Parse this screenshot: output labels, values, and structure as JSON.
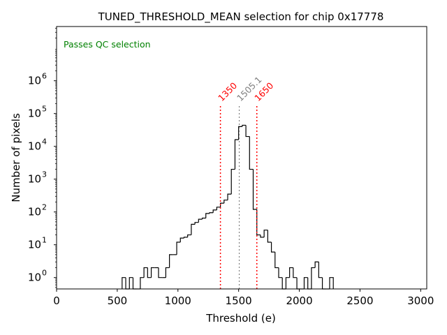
{
  "chart_data": {
    "type": "histogram",
    "title": "TUNED_THRESHOLD_MEAN selection for chip 0x17778",
    "xlabel": "Threshold (e)",
    "ylabel": "Number of pixels",
    "xlim": [
      0,
      3050
    ],
    "ylim": [
      0.45,
      45000000
    ],
    "yscale": "log",
    "xticks": [
      0,
      500,
      1000,
      1500,
      2000,
      2500,
      3000
    ],
    "xtick_labels": [
      "0",
      "500",
      "1000",
      "1500",
      "2000",
      "2500",
      "3000"
    ],
    "yticks": [
      1,
      10,
      100,
      1000,
      10000,
      100000,
      1000000
    ],
    "ytick_labels": [
      {
        "base": "10",
        "exp": "0"
      },
      {
        "base": "10",
        "exp": "1"
      },
      {
        "base": "10",
        "exp": "2"
      },
      {
        "base": "10",
        "exp": "3"
      },
      {
        "base": "10",
        "exp": "4"
      },
      {
        "base": "10",
        "exp": "5"
      },
      {
        "base": "10",
        "exp": "6"
      }
    ],
    "status_text": "Passes QC selection",
    "status_color": "#008000",
    "bin_width": 30,
    "bins": [
      {
        "x": 540,
        "count": 1
      },
      {
        "x": 570,
        "count": 0
      },
      {
        "x": 600,
        "count": 1
      },
      {
        "x": 630,
        "count": 0
      },
      {
        "x": 660,
        "count": 0
      },
      {
        "x": 690,
        "count": 1
      },
      {
        "x": 720,
        "count": 2
      },
      {
        "x": 750,
        "count": 1
      },
      {
        "x": 780,
        "count": 2
      },
      {
        "x": 810,
        "count": 2
      },
      {
        "x": 840,
        "count": 1
      },
      {
        "x": 870,
        "count": 1
      },
      {
        "x": 900,
        "count": 2
      },
      {
        "x": 930,
        "count": 5
      },
      {
        "x": 960,
        "count": 5
      },
      {
        "x": 990,
        "count": 12
      },
      {
        "x": 1020,
        "count": 16
      },
      {
        "x": 1050,
        "count": 17
      },
      {
        "x": 1080,
        "count": 20
      },
      {
        "x": 1110,
        "count": 42
      },
      {
        "x": 1140,
        "count": 48
      },
      {
        "x": 1170,
        "count": 60
      },
      {
        "x": 1200,
        "count": 65
      },
      {
        "x": 1230,
        "count": 90
      },
      {
        "x": 1260,
        "count": 95
      },
      {
        "x": 1290,
        "count": 115
      },
      {
        "x": 1320,
        "count": 140
      },
      {
        "x": 1350,
        "count": 185
      },
      {
        "x": 1380,
        "count": 230
      },
      {
        "x": 1410,
        "count": 350
      },
      {
        "x": 1440,
        "count": 2000
      },
      {
        "x": 1470,
        "count": 16000
      },
      {
        "x": 1500,
        "count": 40000
      },
      {
        "x": 1530,
        "count": 44000
      },
      {
        "x": 1560,
        "count": 20000
      },
      {
        "x": 1590,
        "count": 2000
      },
      {
        "x": 1620,
        "count": 120
      },
      {
        "x": 1650,
        "count": 20
      },
      {
        "x": 1680,
        "count": 17
      },
      {
        "x": 1710,
        "count": 28
      },
      {
        "x": 1740,
        "count": 12
      },
      {
        "x": 1770,
        "count": 6
      },
      {
        "x": 1800,
        "count": 2
      },
      {
        "x": 1830,
        "count": 1
      },
      {
        "x": 1860,
        "count": 0
      },
      {
        "x": 1890,
        "count": 1
      },
      {
        "x": 1920,
        "count": 2
      },
      {
        "x": 1950,
        "count": 1
      },
      {
        "x": 1980,
        "count": 0
      },
      {
        "x": 2010,
        "count": 0
      },
      {
        "x": 2040,
        "count": 1
      },
      {
        "x": 2070,
        "count": 0
      },
      {
        "x": 2100,
        "count": 2
      },
      {
        "x": 2130,
        "count": 3
      },
      {
        "x": 2160,
        "count": 1
      },
      {
        "x": 2190,
        "count": 0
      },
      {
        "x": 2220,
        "count": 0
      },
      {
        "x": 2250,
        "count": 1
      }
    ],
    "vlines": [
      {
        "name": "lower-cut-line",
        "value": 1350,
        "label": "1350",
        "color": "#ff0000"
      },
      {
        "name": "mean-line",
        "value": 1505.1,
        "label": "1505.1",
        "color": "#808080"
      },
      {
        "name": "upper-cut-line",
        "value": 1650,
        "label": "1650",
        "color": "#ff0000"
      }
    ]
  }
}
